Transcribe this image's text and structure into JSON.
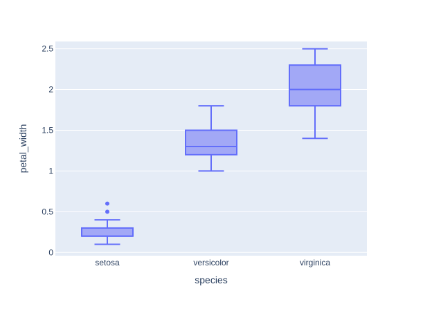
{
  "chart_data": {
    "type": "box",
    "xlabel": "species",
    "ylabel": "petal_width",
    "ylim": [
      -0.04,
      2.59
    ],
    "yticks": [
      0,
      0.5,
      1,
      1.5,
      2,
      2.5
    ],
    "ytick_labels": [
      "0",
      "0.5",
      "1",
      "1.5",
      "2",
      "2.5"
    ],
    "grid": true,
    "categories": [
      "setosa",
      "versicolor",
      "virginica"
    ],
    "boxes": [
      {
        "category": "setosa",
        "lowerfence": 0.1,
        "q1": 0.2,
        "median": 0.2,
        "q3": 0.3,
        "upperfence": 0.4,
        "outliers": [
          0.5,
          0.6
        ]
      },
      {
        "category": "versicolor",
        "lowerfence": 1.0,
        "q1": 1.2,
        "median": 1.3,
        "q3": 1.5,
        "upperfence": 1.8,
        "outliers": []
      },
      {
        "category": "virginica",
        "lowerfence": 1.4,
        "q1": 1.8,
        "median": 2.0,
        "q3": 2.3,
        "upperfence": 2.5,
        "outliers": []
      }
    ],
    "colors": {
      "line": "#636efa",
      "fill": "#a2a8f6",
      "plot_bg": "#e5ecf6",
      "grid": "#ffffff",
      "text": "#2a3f5f"
    }
  }
}
